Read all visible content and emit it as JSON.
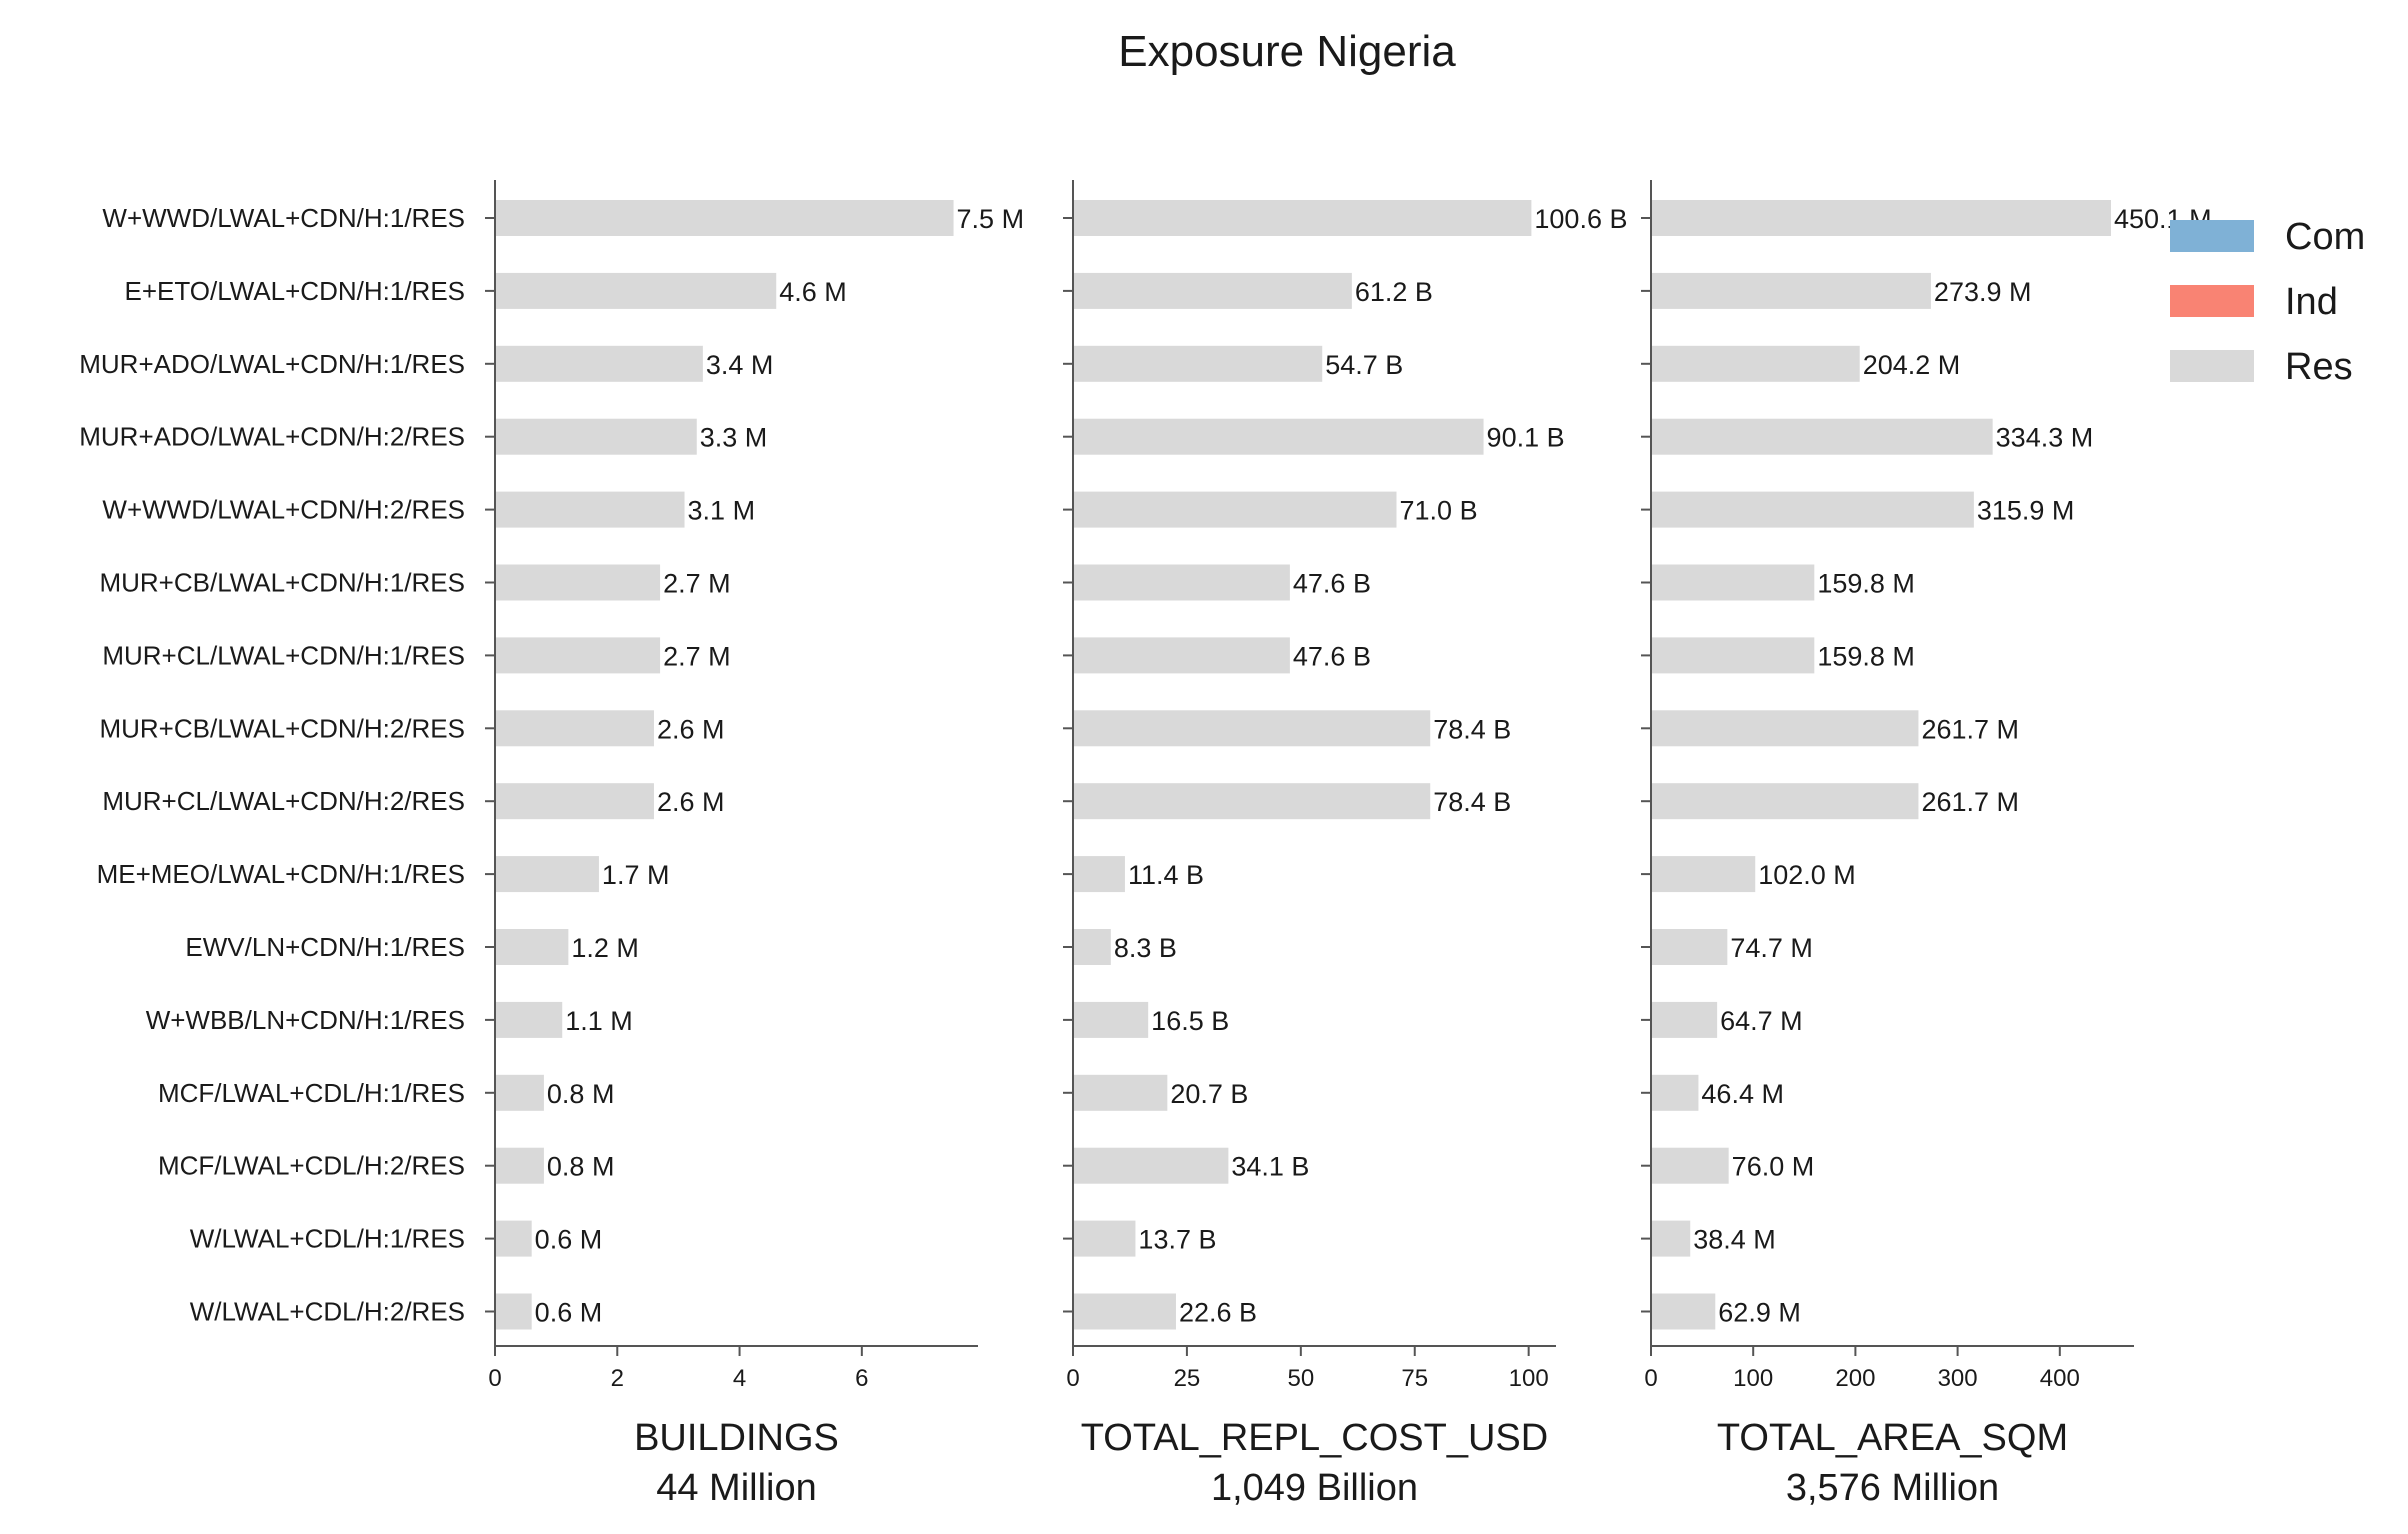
{
  "title": "Exposure Nigeria",
  "colors": {
    "Com": "#7fb1d6",
    "Ind": "#f98373",
    "Res": "#d9d9d9",
    "axis": "#555555",
    "text": "#1a1a1a"
  },
  "legend": [
    {
      "name": "Com",
      "color": "#7fb1d6"
    },
    {
      "name": "Ind",
      "color": "#f98373"
    },
    {
      "name": "Res",
      "color": "#d9d9d9"
    }
  ],
  "chart_data": [
    {
      "type": "bar",
      "orientation": "horizontal",
      "categories": [
        "W+WWD/LWAL+CDN/H:1/RES",
        "E+ETO/LWAL+CDN/H:1/RES",
        "MUR+ADO/LWAL+CDN/H:1/RES",
        "MUR+ADO/LWAL+CDN/H:2/RES",
        "W+WWD/LWAL+CDN/H:2/RES",
        "MUR+CB/LWAL+CDN/H:1/RES",
        "MUR+CL/LWAL+CDN/H:1/RES",
        "MUR+CB/LWAL+CDN/H:2/RES",
        "MUR+CL/LWAL+CDN/H:2/RES",
        "ME+MEO/LWAL+CDN/H:1/RES",
        "EWV/LN+CDN/H:1/RES",
        "W+WBB/LN+CDN/H:1/RES",
        "MCF/LWAL+CDL/H:1/RES",
        "MCF/LWAL+CDL/H:2/RES",
        "W/LWAL+CDL/H:1/RES",
        "W/LWAL+CDL/H:2/RES"
      ],
      "series": [
        {
          "name": "Res",
          "values": [
            7.5,
            4.6,
            3.4,
            3.3,
            3.1,
            2.7,
            2.7,
            2.6,
            2.6,
            1.7,
            1.2,
            1.1,
            0.8,
            0.8,
            0.6,
            0.6
          ]
        }
      ],
      "value_labels": [
        "7.5 M",
        "4.6 M",
        "3.4 M",
        "3.3 M",
        "3.1 M",
        "2.7 M",
        "2.7 M",
        "2.6 M",
        "2.6 M",
        "1.7 M",
        "1.2 M",
        "1.1 M",
        "0.8 M",
        "0.8 M",
        "0.6 M",
        "0.6 M"
      ],
      "xticks": [
        "0",
        "2",
        "4",
        "6"
      ],
      "xlim": [
        0,
        7.9
      ],
      "xlabel": "BUILDINGS",
      "xlabel_total": "44 Million"
    },
    {
      "type": "bar",
      "orientation": "horizontal",
      "categories": [
        "W+WWD/LWAL+CDN/H:1/RES",
        "E+ETO/LWAL+CDN/H:1/RES",
        "MUR+ADO/LWAL+CDN/H:1/RES",
        "MUR+ADO/LWAL+CDN/H:2/RES",
        "W+WWD/LWAL+CDN/H:2/RES",
        "MUR+CB/LWAL+CDN/H:1/RES",
        "MUR+CL/LWAL+CDN/H:1/RES",
        "MUR+CB/LWAL+CDN/H:2/RES",
        "MUR+CL/LWAL+CDN/H:2/RES",
        "ME+MEO/LWAL+CDN/H:1/RES",
        "EWV/LN+CDN/H:1/RES",
        "W+WBB/LN+CDN/H:1/RES",
        "MCF/LWAL+CDL/H:1/RES",
        "MCF/LWAL+CDL/H:2/RES",
        "W/LWAL+CDL/H:1/RES",
        "W/LWAL+CDL/H:2/RES"
      ],
      "series": [
        {
          "name": "Res",
          "values": [
            100.6,
            61.2,
            54.7,
            90.1,
            71.0,
            47.6,
            47.6,
            78.4,
            78.4,
            11.4,
            8.3,
            16.5,
            20.7,
            34.1,
            13.7,
            22.6
          ]
        }
      ],
      "value_labels": [
        "100.6 B",
        "61.2 B",
        "54.7 B",
        "90.1 B",
        "71.0 B",
        "47.6 B",
        "47.6 B",
        "78.4 B",
        "78.4 B",
        "11.4 B",
        "8.3 B",
        "16.5 B",
        "20.7 B",
        "34.1 B",
        "13.7 B",
        "22.6 B"
      ],
      "xticks": [
        "0",
        "25",
        "50",
        "75",
        "100"
      ],
      "xlim": [
        0,
        106
      ],
      "xlabel": "TOTAL_REPL_COST_USD",
      "xlabel_total": "1,049 Billion"
    },
    {
      "type": "bar",
      "orientation": "horizontal",
      "categories": [
        "W+WWD/LWAL+CDN/H:1/RES",
        "E+ETO/LWAL+CDN/H:1/RES",
        "MUR+ADO/LWAL+CDN/H:1/RES",
        "MUR+ADO/LWAL+CDN/H:2/RES",
        "W+WWD/LWAL+CDN/H:2/RES",
        "MUR+CB/LWAL+CDN/H:1/RES",
        "MUR+CL/LWAL+CDN/H:1/RES",
        "MUR+CB/LWAL+CDN/H:2/RES",
        "MUR+CL/LWAL+CDN/H:2/RES",
        "ME+MEO/LWAL+CDN/H:1/RES",
        "EWV/LN+CDN/H:1/RES",
        "W+WBB/LN+CDN/H:1/RES",
        "MCF/LWAL+CDL/H:1/RES",
        "MCF/LWAL+CDL/H:2/RES",
        "W/LWAL+CDL/H:1/RES",
        "W/LWAL+CDL/H:2/RES"
      ],
      "series": [
        {
          "name": "Res",
          "values": [
            450.1,
            273.9,
            204.2,
            334.3,
            315.9,
            159.8,
            159.8,
            261.7,
            261.7,
            102.0,
            74.7,
            64.7,
            46.4,
            76.0,
            38.4,
            62.9
          ]
        }
      ],
      "value_labels": [
        "450.1 M",
        "273.9 M",
        "204.2 M",
        "334.3 M",
        "315.9 M",
        "159.8 M",
        "159.8 M",
        "261.7 M",
        "261.7 M",
        "102.0 M",
        "74.7 M",
        "64.7 M",
        "46.4 M",
        "76.0 M",
        "38.4 M",
        "62.9 M"
      ],
      "xticks": [
        "0",
        "100",
        "200",
        "300",
        "400"
      ],
      "xlim": [
        0,
        472.6
      ],
      "xlabel": "TOTAL_AREA_SQM",
      "xlabel_total": "3,576 Million"
    }
  ]
}
